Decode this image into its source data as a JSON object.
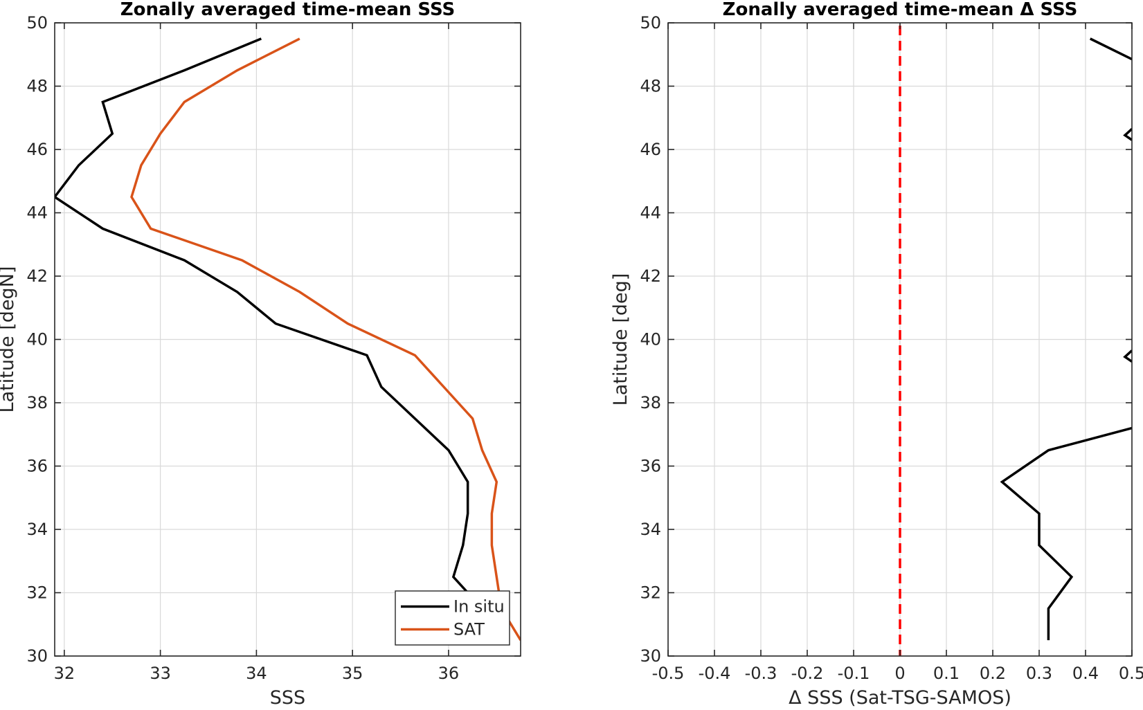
{
  "chart_data": [
    {
      "type": "line",
      "title": "Zonally averaged time-mean SSS",
      "xlabel": "SSS",
      "ylabel": "Latitude [degN]",
      "xlim": [
        31.9,
        36.75
      ],
      "ylim": [
        30,
        50
      ],
      "xticks": [
        32,
        33,
        34,
        35,
        36
      ],
      "yticks": [
        30,
        32,
        34,
        36,
        38,
        40,
        42,
        44,
        46,
        48,
        50
      ],
      "grid": true,
      "legend": "bottom-right",
      "series": [
        {
          "name": "In situ",
          "color": "#000000",
          "x": [
            34.05,
            33.25,
            32.4,
            32.5,
            32.15,
            31.9,
            32.4,
            33.25,
            33.8,
            34.2,
            35.15,
            35.3,
            35.65,
            36.0,
            36.2,
            36.2,
            36.15,
            36.05,
            36.2
          ],
          "y": [
            49.5,
            48.5,
            47.5,
            46.5,
            45.5,
            44.5,
            43.5,
            42.5,
            41.5,
            40.5,
            39.5,
            38.5,
            37.5,
            36.5,
            35.5,
            34.5,
            33.5,
            32.5,
            32.0
          ]
        },
        {
          "name": "SAT",
          "color": "#D95319",
          "x": [
            34.45,
            33.8,
            33.25,
            33.0,
            32.8,
            32.7,
            32.9,
            33.85,
            34.45,
            34.95,
            35.65,
            35.95,
            36.25,
            36.35,
            36.5,
            36.45,
            36.45,
            36.5,
            36.55,
            36.75
          ],
          "y": [
            49.5,
            48.5,
            47.5,
            46.5,
            45.5,
            44.5,
            43.5,
            42.5,
            41.5,
            40.5,
            39.5,
            38.5,
            37.5,
            36.5,
            35.5,
            34.5,
            33.5,
            32.5,
            31.5,
            30.5
          ]
        }
      ]
    },
    {
      "type": "line",
      "title": "Zonally averaged time-mean Δ SSS",
      "xlabel": "Δ SSS (Sat-TSG-SAMOS)",
      "ylabel": "Latitude [deg]",
      "xlim": [
        -0.5,
        0.5
      ],
      "ylim": [
        30,
        50
      ],
      "xticks": [
        -0.5,
        -0.4,
        -0.3,
        -0.2,
        -0.1,
        0,
        0.1,
        0.2,
        0.3,
        0.4,
        0.5
      ],
      "xticklabels": [
        "-0.5",
        "-0.4",
        "-0.3",
        "-0.2",
        "-0.1",
        "0",
        "0.1",
        "0.2",
        "0.3",
        "0.4",
        "0.5"
      ],
      "yticks": [
        30,
        32,
        34,
        36,
        38,
        40,
        42,
        44,
        46,
        48,
        50
      ],
      "grid": true,
      "reference_line": {
        "x": 0,
        "style": "dashed",
        "color": "#FF0000"
      },
      "series": [
        {
          "color": "#000000",
          "x": [
            0.41,
            0.5
          ],
          "y": [
            49.5,
            48.85
          ]
        },
        {
          "color": "#000000",
          "x": [
            0.5,
            0.485,
            0.5
          ],
          "y": [
            46.65,
            46.45,
            46.3
          ]
        },
        {
          "color": "#000000",
          "x": [
            0.5,
            0.485,
            0.5
          ],
          "y": [
            39.65,
            39.45,
            39.3
          ]
        },
        {
          "color": "#000000",
          "x": [
            0.5,
            0.32,
            0.22,
            0.3,
            0.3,
            0.37,
            0.32,
            0.32,
            0.32
          ],
          "y": [
            37.2,
            36.5,
            35.5,
            34.5,
            33.5,
            32.5,
            31.5,
            30.5,
            30.5
          ]
        }
      ]
    }
  ]
}
